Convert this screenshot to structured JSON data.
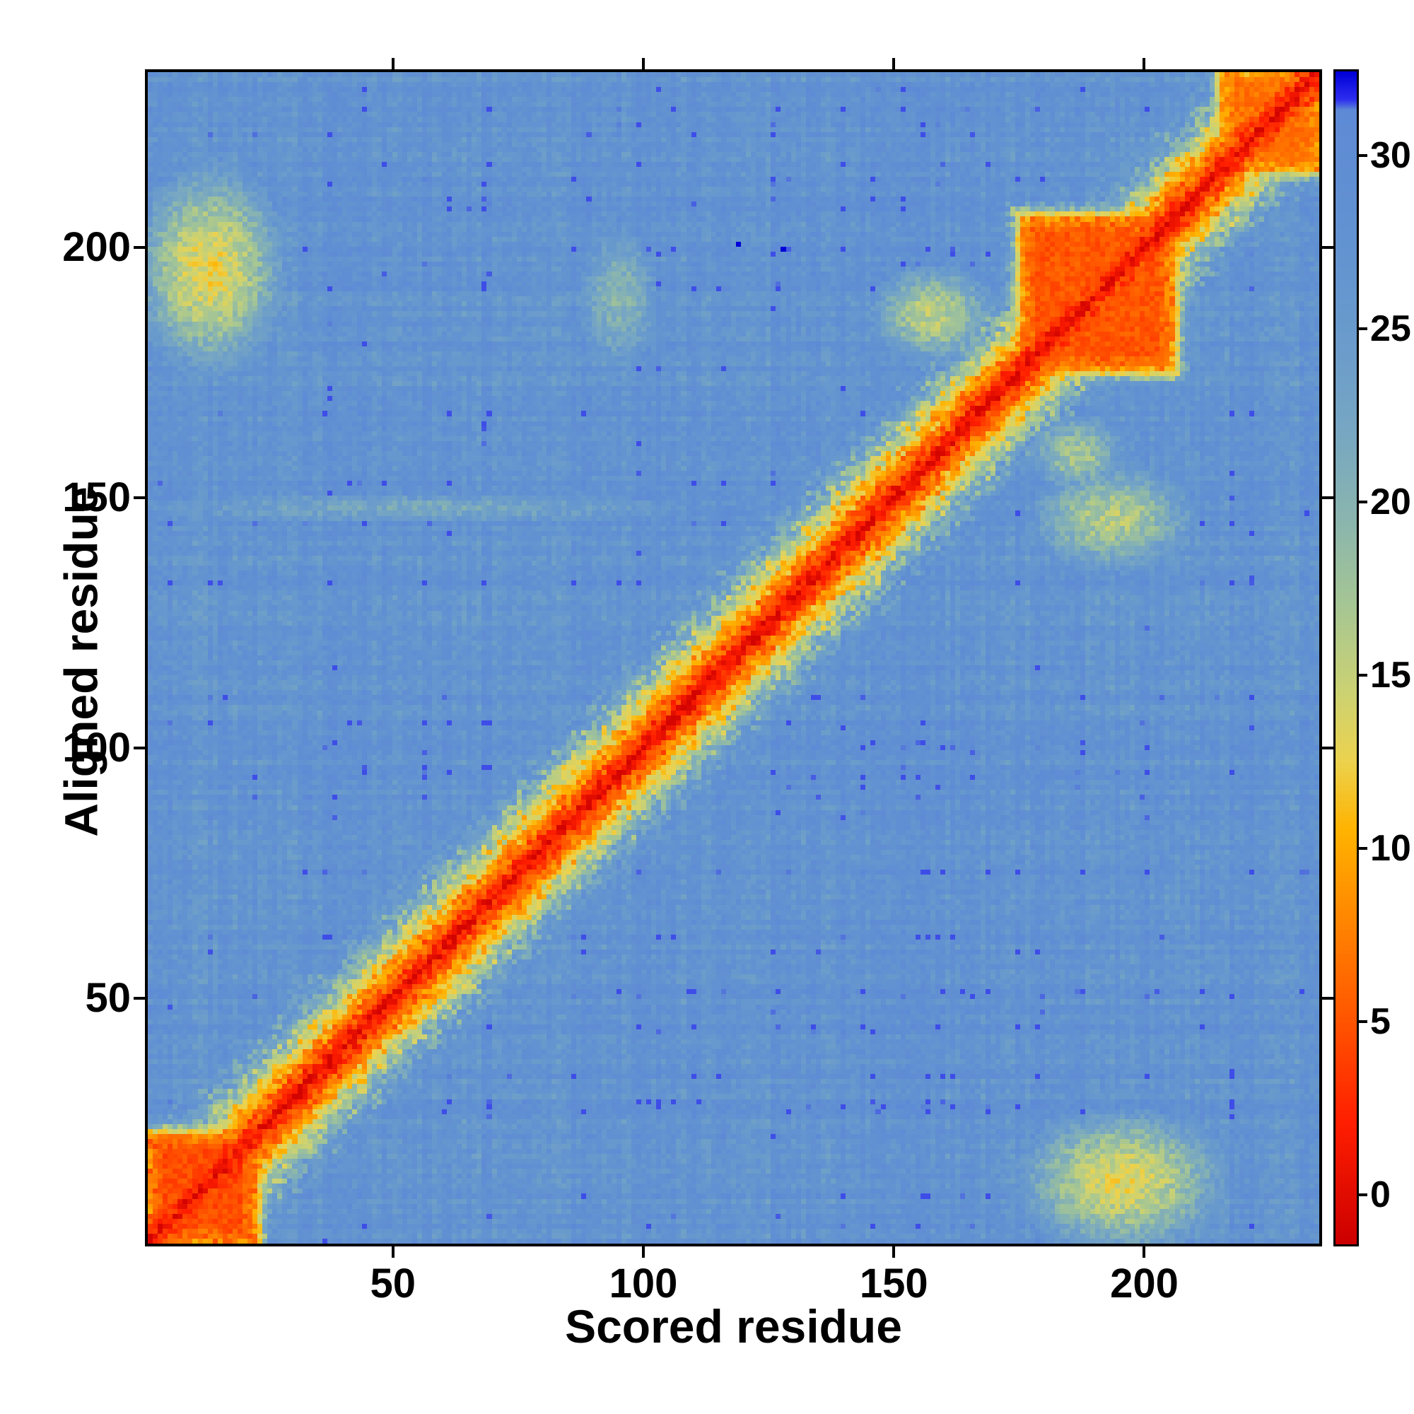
{
  "chart_data": {
    "type": "heatmap",
    "title": "",
    "xlabel": "Scored residue",
    "ylabel": "Aligned residue",
    "n_residues": 235,
    "x_ticks": [
      50,
      100,
      150,
      200
    ],
    "y_ticks": [
      50,
      100,
      150,
      200
    ],
    "colorbar_ticks": [
      0,
      5,
      10,
      15,
      20,
      25,
      30
    ],
    "value_range": [
      0,
      32
    ],
    "colorbar_range": [
      -1.5,
      32.5
    ],
    "background_value": 27.5,
    "grid": false,
    "legend_position": "right-colorbar",
    "frame_color": "#000000",
    "background_color": "#ffffff",
    "noise": {
      "row": 1.6,
      "col": 1.6,
      "cell": 2.1
    },
    "colormap_stops": [
      [
        -1.5,
        "#cc0000"
      ],
      [
        2,
        "#ff1e00"
      ],
      [
        5,
        "#ff5500"
      ],
      [
        8,
        "#ff8800"
      ],
      [
        10.5,
        "#ffb300"
      ],
      [
        12.5,
        "#ecd24e"
      ],
      [
        14.5,
        "#ccd272"
      ],
      [
        17,
        "#a6c693"
      ],
      [
        19.5,
        "#8ab5ae"
      ],
      [
        22,
        "#77a7c2"
      ],
      [
        24.5,
        "#6b9ccb"
      ],
      [
        27,
        "#6394d0"
      ],
      [
        29.5,
        "#608ed3"
      ],
      [
        31.4,
        "#5e8ad5"
      ],
      [
        31.7,
        "#2e2ef0"
      ],
      [
        32.5,
        "#0000d8"
      ]
    ],
    "diagonal": {
      "core_value": 0,
      "slope": 1.35,
      "noise": 2.6
    },
    "low_error_blocks": [
      {
        "start": 1,
        "end": 22,
        "value": 3.2
      },
      {
        "start": 176,
        "end": 206,
        "value": 3.8
      },
      {
        "start": 216,
        "end": 236,
        "value": 5.5
      }
    ],
    "moderate_spots": [
      {
        "x": 13,
        "y": 196,
        "rx": 16,
        "ry": 22,
        "value": 13
      },
      {
        "x": 196,
        "y": 13,
        "rx": 22,
        "ry": 15,
        "value": 13.5
      },
      {
        "x": 194,
        "y": 146,
        "rx": 17,
        "ry": 11,
        "value": 16
      },
      {
        "x": 158,
        "y": 187,
        "rx": 13,
        "ry": 10,
        "value": 15.5
      },
      {
        "x": 187,
        "y": 159,
        "rx": 10,
        "ry": 8,
        "value": 17
      },
      {
        "x": 95,
        "y": 190,
        "rx": 8,
        "ry": 14,
        "value": 19.5
      },
      {
        "x": 55,
        "y": 148,
        "rx": 55,
        "ry": 3,
        "value": 22
      }
    ],
    "outlier_high_cells": [
      [
        119,
        201
      ],
      [
        128,
        200
      ]
    ]
  }
}
